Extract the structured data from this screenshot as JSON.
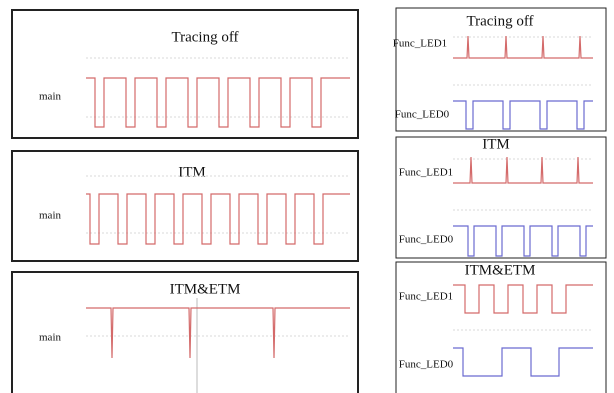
{
  "panels": [
    {
      "title": "Tracing off",
      "signals": [
        "main"
      ]
    },
    {
      "title": "ITM",
      "signals": [
        "main"
      ]
    },
    {
      "title": "ITM&ETM",
      "signals": [
        "main"
      ]
    }
  ],
  "side_panels": [
    {
      "title": "Tracing off",
      "signals": [
        "Func_LED1",
        "Func_LED0"
      ]
    },
    {
      "title": "ITM",
      "signals": [
        "Func_LED1",
        "Func_LED0"
      ]
    },
    {
      "title": "ITM&ETM",
      "signals": [
        "Func_LED1",
        "Func_LED0"
      ]
    }
  ]
}
